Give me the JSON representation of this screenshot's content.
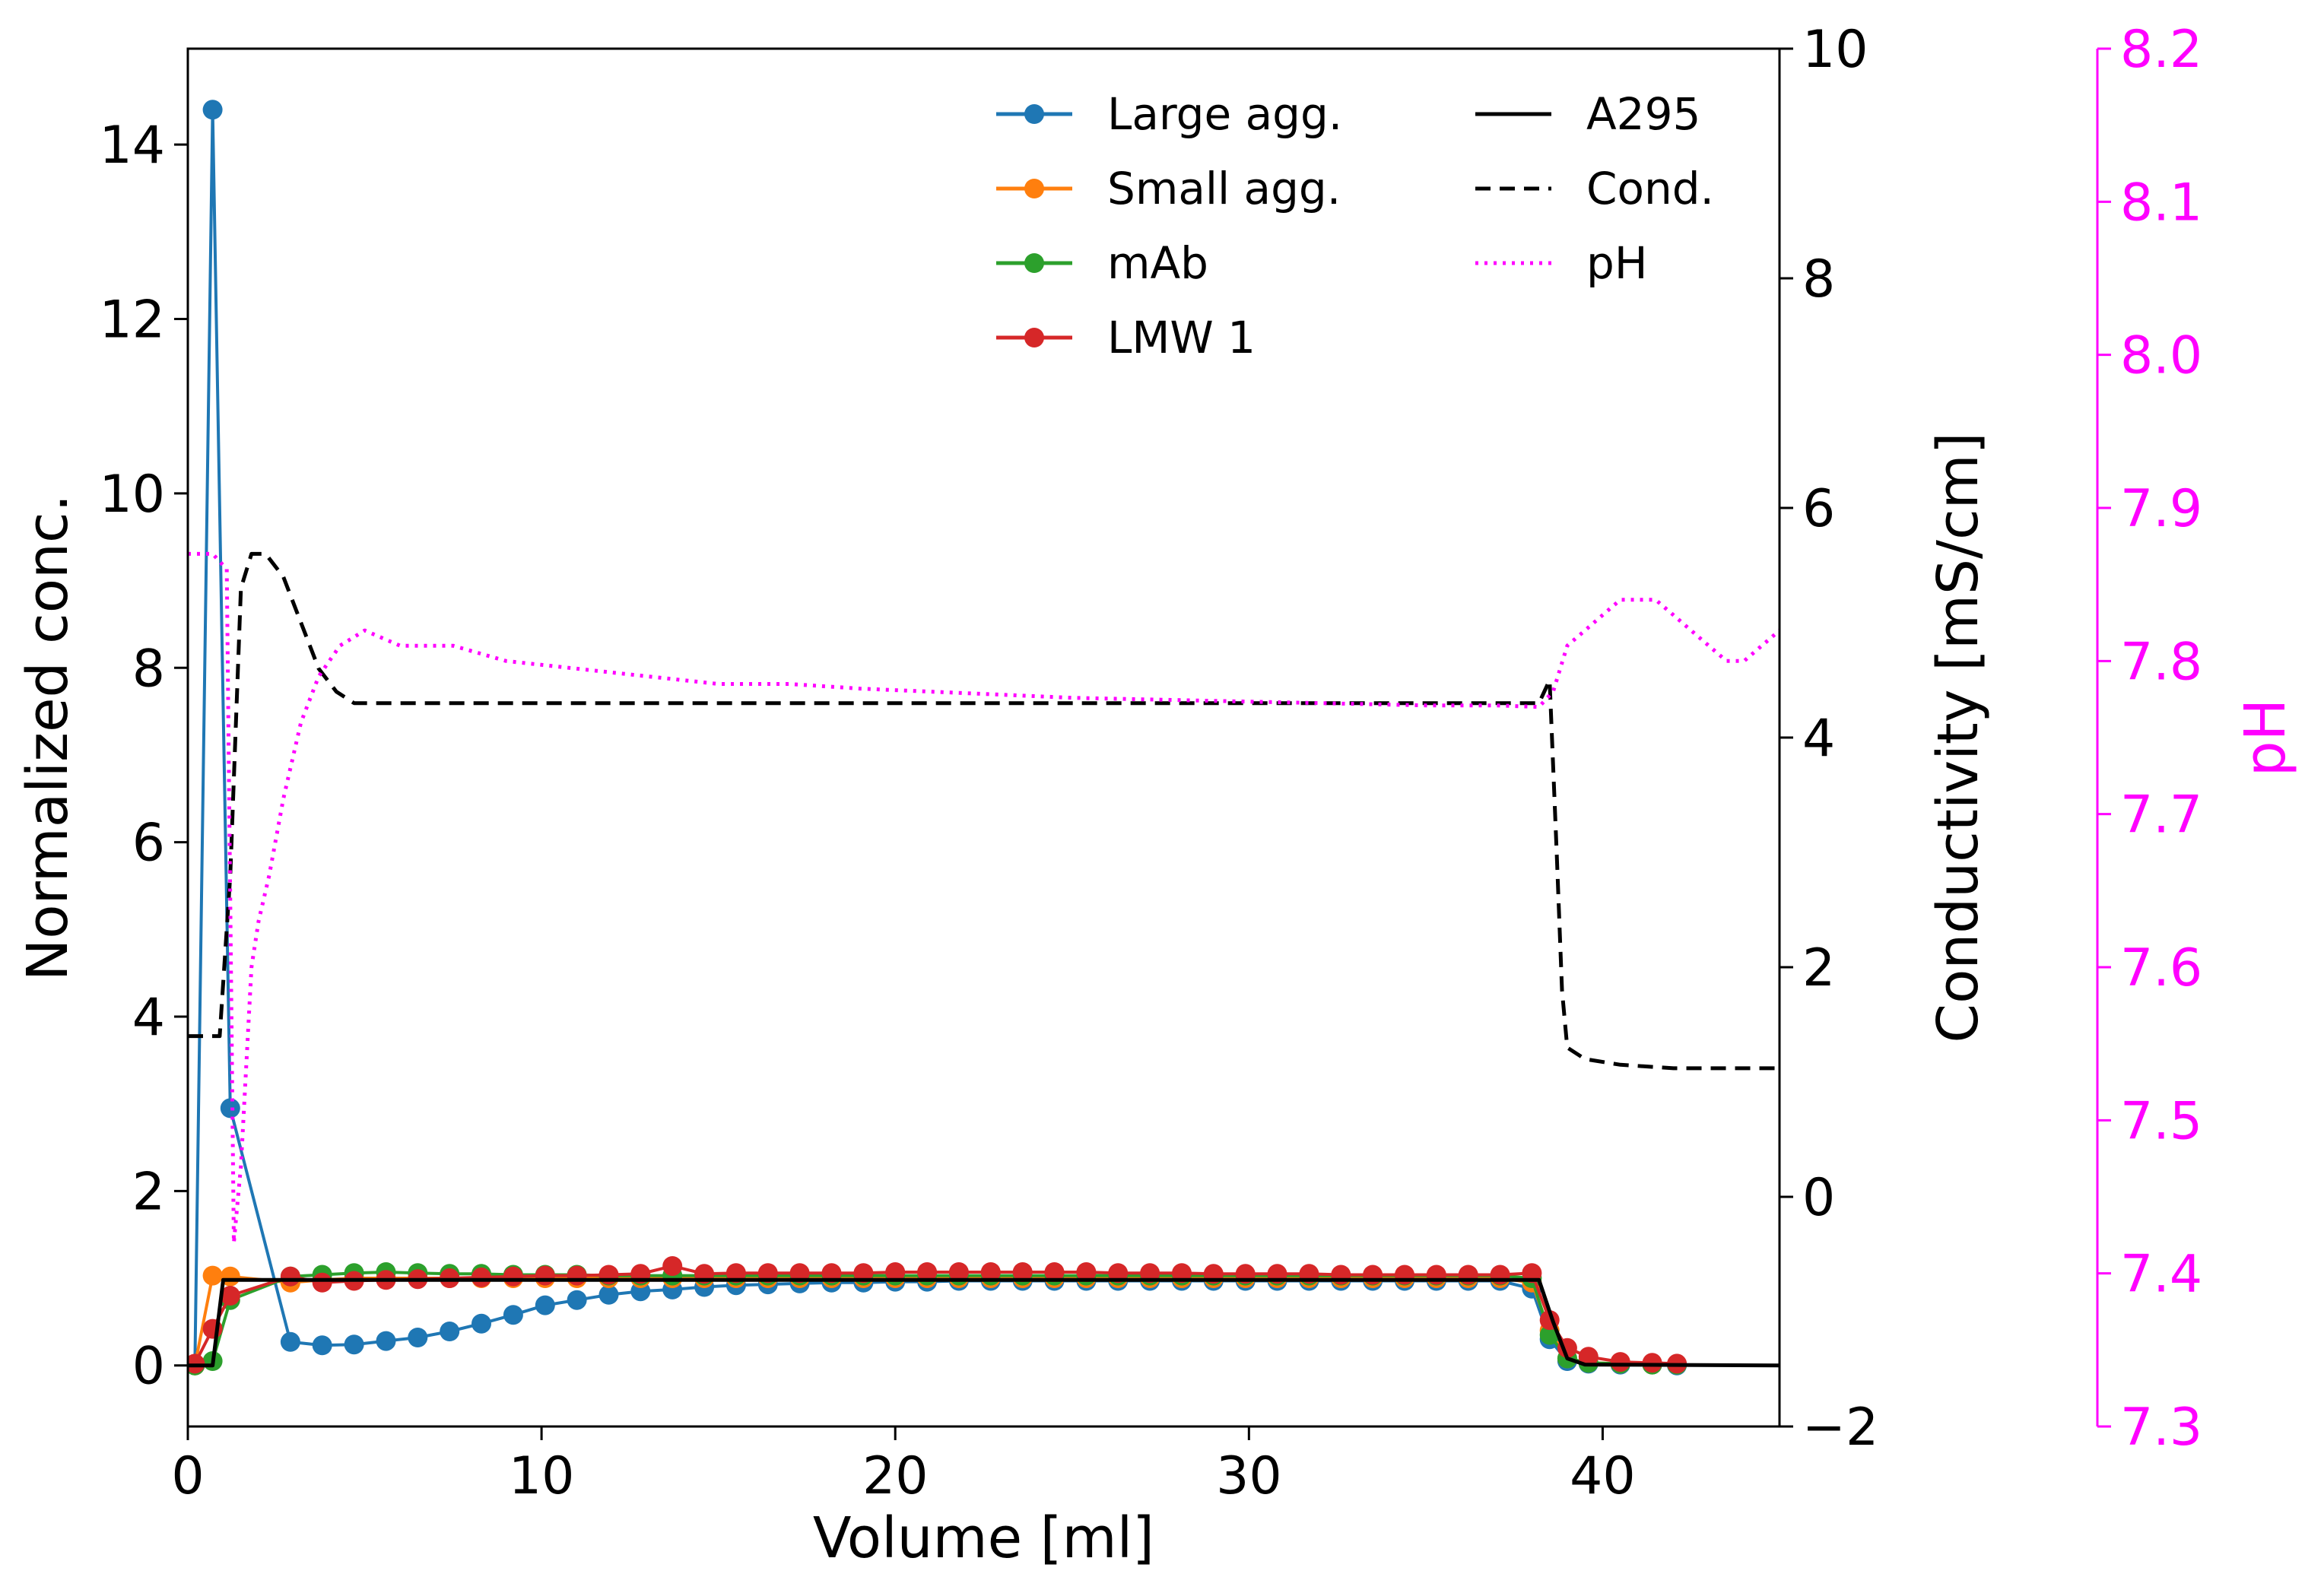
{
  "chart_data": {
    "type": "line",
    "xlabel": "Volume [ml]",
    "ylabel": "Normalized conc.",
    "y2label": "Conductivity [mS/cm]",
    "y3label": "pH",
    "xlim": [
      0,
      45
    ],
    "ylim": [
      -0.7,
      15.1
    ],
    "y2lim": [
      -2,
      10
    ],
    "y3lim": [
      7.3,
      8.2
    ],
    "xticks": [
      "0",
      "10",
      "20",
      "30",
      "40"
    ],
    "yticks": [
      "0",
      "2",
      "4",
      "6",
      "8",
      "10",
      "12",
      "14"
    ],
    "y2ticks": [
      "−2",
      "0",
      "2",
      "4",
      "6",
      "8",
      "10"
    ],
    "y3ticks": [
      "7.3",
      "7.4",
      "7.5",
      "7.6",
      "7.7",
      "7.8",
      "7.9",
      "8.0",
      "8.1",
      "8.2"
    ],
    "legend_position": "top-right",
    "colors": {
      "large_agg": "#1f77b4",
      "small_agg": "#ff7f0e",
      "mab": "#2ca02c",
      "lmw1": "#d62728",
      "a295": "#000000",
      "cond": "#000000",
      "ph": "#ff00ff"
    },
    "series": [
      {
        "name": "Large agg.",
        "axis": "left",
        "style": "line-marker",
        "color": "#1f77b4",
        "x": [
          0.2,
          0.7,
          1.2,
          2.9,
          3.8,
          4.7,
          5.6,
          6.5,
          7.4,
          8.3,
          9.2,
          10.1,
          11.0,
          11.9,
          12.8,
          13.7,
          14.6,
          15.5,
          16.4,
          17.3,
          18.2,
          19.1,
          20.0,
          20.9,
          21.8,
          22.7,
          23.6,
          24.5,
          25.4,
          26.3,
          27.2,
          28.1,
          29.0,
          29.9,
          30.8,
          31.7,
          32.6,
          33.5,
          34.4,
          35.3,
          36.2,
          37.1,
          38.0,
          38.5,
          39.0,
          39.6,
          40.5,
          41.4,
          42.1
        ],
        "y": [
          0.0,
          14.4,
          2.95,
          0.27,
          0.23,
          0.24,
          0.28,
          0.32,
          0.39,
          0.48,
          0.58,
          0.69,
          0.75,
          0.81,
          0.85,
          0.87,
          0.9,
          0.92,
          0.93,
          0.94,
          0.95,
          0.95,
          0.96,
          0.96,
          0.97,
          0.97,
          0.97,
          0.97,
          0.97,
          0.97,
          0.97,
          0.97,
          0.97,
          0.97,
          0.97,
          0.97,
          0.97,
          0.97,
          0.97,
          0.97,
          0.97,
          0.97,
          0.88,
          0.3,
          0.05,
          0.02,
          0.01,
          0.01,
          0.0
        ]
      },
      {
        "name": "Small agg.",
        "axis": "left",
        "style": "line-marker",
        "color": "#ff7f0e",
        "x": [
          0.2,
          0.7,
          1.2,
          2.9,
          3.8,
          4.7,
          5.6,
          6.5,
          7.4,
          8.3,
          9.2,
          10.1,
          11.0,
          11.9,
          12.8,
          13.7,
          14.6,
          15.5,
          16.4,
          17.3,
          18.2,
          19.1,
          20.0,
          20.9,
          21.8,
          22.7,
          23.6,
          24.5,
          25.4,
          26.3,
          27.2,
          28.1,
          29.0,
          29.9,
          30.8,
          31.7,
          32.6,
          33.5,
          34.4,
          35.3,
          36.2,
          37.1,
          38.0,
          38.5,
          39.0,
          39.6,
          40.5,
          41.4,
          42.1
        ],
        "y": [
          0.0,
          1.03,
          1.02,
          0.95,
          0.98,
          1.0,
          1.0,
          1.0,
          1.0,
          1.0,
          1.0,
          1.0,
          1.0,
          1.0,
          1.0,
          1.0,
          1.0,
          1.0,
          1.0,
          1.0,
          1.0,
          1.0,
          1.0,
          1.0,
          1.0,
          1.0,
          1.0,
          1.0,
          1.0,
          1.0,
          1.0,
          1.0,
          1.0,
          1.0,
          1.0,
          1.0,
          1.0,
          1.0,
          1.0,
          1.0,
          1.0,
          1.0,
          0.95,
          0.4,
          0.08,
          0.03,
          0.02,
          0.01,
          0.01
        ]
      },
      {
        "name": "mAb",
        "axis": "left",
        "style": "line-marker",
        "color": "#2ca02c",
        "x": [
          0.2,
          0.7,
          1.2,
          2.9,
          3.8,
          4.7,
          5.6,
          6.5,
          7.4,
          8.3,
          9.2,
          10.1,
          11.0,
          11.9,
          12.8,
          13.7,
          14.6,
          15.5,
          16.4,
          17.3,
          18.2,
          19.1,
          20.0,
          20.9,
          21.8,
          22.7,
          23.6,
          24.5,
          25.4,
          26.3,
          27.2,
          28.1,
          29.0,
          29.9,
          30.8,
          31.7,
          32.6,
          33.5,
          34.4,
          35.3,
          36.2,
          37.1,
          38.0,
          38.5,
          39.0,
          39.6,
          40.5,
          41.4,
          42.1
        ],
        "y": [
          0.0,
          0.05,
          0.75,
          1.02,
          1.04,
          1.06,
          1.07,
          1.06,
          1.05,
          1.05,
          1.04,
          1.04,
          1.04,
          1.03,
          1.03,
          1.03,
          1.03,
          1.03,
          1.03,
          1.03,
          1.03,
          1.03,
          1.03,
          1.03,
          1.03,
          1.03,
          1.03,
          1.03,
          1.03,
          1.03,
          1.03,
          1.03,
          1.03,
          1.03,
          1.03,
          1.03,
          1.03,
          1.03,
          1.03,
          1.03,
          1.03,
          1.03,
          1.0,
          0.35,
          0.08,
          0.03,
          0.02,
          0.01,
          0.01
        ]
      },
      {
        "name": "LMW 1",
        "axis": "left",
        "style": "line-marker",
        "color": "#d62728",
        "x": [
          0.2,
          0.7,
          1.2,
          2.9,
          3.8,
          4.7,
          5.6,
          6.5,
          7.4,
          8.3,
          9.2,
          10.1,
          11.0,
          11.9,
          12.8,
          13.7,
          14.6,
          15.5,
          16.4,
          17.3,
          18.2,
          19.1,
          20.0,
          20.9,
          21.8,
          22.7,
          23.6,
          24.5,
          25.4,
          26.3,
          27.2,
          28.1,
          29.0,
          29.9,
          30.8,
          31.7,
          32.6,
          33.5,
          34.4,
          35.3,
          36.2,
          37.1,
          38.0,
          38.5,
          39.0,
          39.6,
          40.5,
          41.4,
          42.1
        ],
        "y": [
          0.02,
          0.42,
          0.8,
          1.02,
          0.95,
          0.97,
          0.98,
          0.99,
          1.0,
          1.01,
          1.02,
          1.03,
          1.03,
          1.04,
          1.05,
          1.14,
          1.05,
          1.06,
          1.06,
          1.06,
          1.06,
          1.06,
          1.07,
          1.07,
          1.07,
          1.07,
          1.07,
          1.07,
          1.07,
          1.06,
          1.06,
          1.06,
          1.05,
          1.05,
          1.05,
          1.05,
          1.04,
          1.04,
          1.04,
          1.04,
          1.04,
          1.04,
          1.06,
          0.52,
          0.2,
          0.1,
          0.04,
          0.03,
          0.02
        ]
      },
      {
        "name": "A295",
        "axis": "left",
        "style": "solid",
        "color": "#000000",
        "x": [
          0.0,
          0.7,
          1.0,
          2.0,
          10.0,
          20.0,
          30.0,
          38.2,
          38.6,
          39.0,
          39.5,
          45.0
        ],
        "y": [
          0.0,
          0.0,
          0.98,
          0.98,
          0.98,
          0.98,
          0.98,
          0.98,
          0.5,
          0.08,
          0.01,
          0.0
        ]
      },
      {
        "name": "Cond.",
        "axis": "right",
        "style": "dashed",
        "color": "#000000",
        "x": [
          0.0,
          0.9,
          1.2,
          1.5,
          1.8,
          2.2,
          2.7,
          3.2,
          3.7,
          4.2,
          4.7,
          10.0,
          20.0,
          30.0,
          38.2,
          38.5,
          38.7,
          38.85,
          39.0,
          39.5,
          40.5,
          42.0,
          45.0
        ],
        "y": [
          1.4,
          1.4,
          2.8,
          5.3,
          5.6,
          5.6,
          5.4,
          5.0,
          4.6,
          4.4,
          4.3,
          4.3,
          4.3,
          4.3,
          4.3,
          4.5,
          3.0,
          1.8,
          1.3,
          1.2,
          1.15,
          1.12,
          1.12
        ]
      },
      {
        "name": "pH",
        "axis": "far-right",
        "style": "dotted",
        "color": "#ff00ff",
        "x": [
          0.0,
          0.7,
          1.1,
          1.3,
          1.5,
          1.8,
          2.0,
          2.3,
          2.7,
          3.2,
          3.7,
          4.3,
          5.0,
          6.0,
          7.5,
          9.0,
          11.0,
          13.0,
          15.0,
          17.0,
          19.0,
          21.0,
          23.0,
          25.0,
          27.0,
          29.0,
          31.0,
          33.0,
          35.0,
          37.0,
          38.2,
          38.6,
          39.0,
          39.5,
          40.0,
          40.5,
          41.0,
          41.5,
          42.0,
          42.5,
          43.0,
          43.5,
          44.0,
          44.5,
          45.0
        ],
        "y": [
          7.87,
          7.87,
          7.86,
          7.42,
          7.47,
          7.6,
          7.63,
          7.66,
          7.71,
          7.76,
          7.79,
          7.81,
          7.82,
          7.81,
          7.81,
          7.8,
          7.795,
          7.79,
          7.785,
          7.785,
          7.782,
          7.78,
          7.778,
          7.776,
          7.775,
          7.774,
          7.773,
          7.772,
          7.771,
          7.771,
          7.77,
          7.78,
          7.81,
          7.82,
          7.83,
          7.84,
          7.84,
          7.84,
          7.83,
          7.82,
          7.81,
          7.8,
          7.8,
          7.81,
          7.82
        ]
      }
    ]
  }
}
